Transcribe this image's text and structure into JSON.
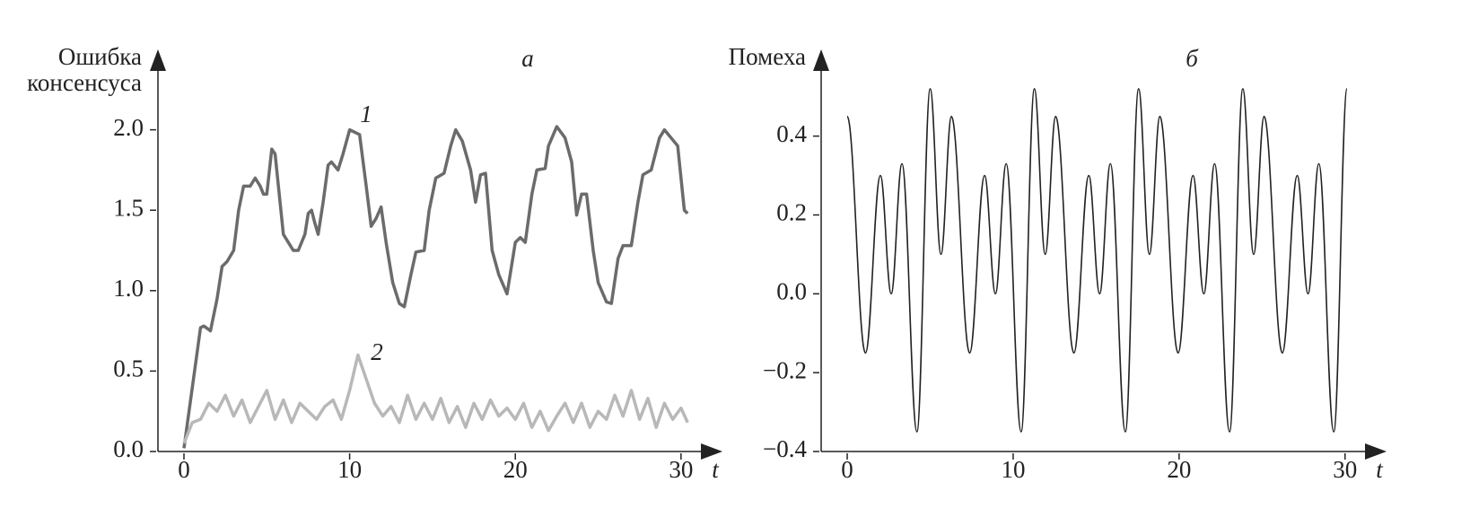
{
  "chart_data": [
    {
      "type": "line",
      "title": "а",
      "ylabel": [
        "Ошибка",
        "консенсуса"
      ],
      "xlabel": "t",
      "xlim": [
        -1.57,
        32.5
      ],
      "ylim": [
        0,
        2.5
      ],
      "xticks": [
        0,
        10,
        20,
        30
      ],
      "yticks": [
        {
          "value": 0,
          "label": "0.0"
        },
        0.5,
        {
          "value": 1,
          "label": "1.0"
        },
        1.5,
        {
          "value": 2,
          "label": "2.0"
        }
      ],
      "smooth": false,
      "series": [
        {
          "name": "1",
          "color": "#6b6b6b",
          "x": [
            0,
            1,
            1.2,
            1.6,
            2,
            2.3,
            2.6,
            3,
            3.3,
            3.6,
            4,
            4.3,
            4.6,
            4.8,
            5,
            5.3,
            5.5,
            5.8,
            6,
            6.3,
            6.6,
            6.9,
            7.3,
            7.5,
            7.7,
            7.9,
            8.1,
            8.4,
            8.7,
            8.9,
            9.3,
            9.6,
            10,
            10.6,
            11,
            11.3,
            11.6,
            11.9,
            12.2,
            12.6,
            13,
            13.3,
            13.7,
            14,
            14.5,
            14.8,
            15.2,
            15.7,
            16.1,
            16.4,
            16.8,
            17.3,
            17.6,
            17.9,
            18.2,
            18.6,
            19,
            19.5,
            20,
            20.3,
            20.6,
            21,
            21.3,
            21.8,
            22,
            22.5,
            23,
            23.4,
            23.7,
            24,
            24.3,
            24.7,
            25,
            25.5,
            25.8,
            26.2,
            26.5,
            27,
            27.4,
            27.7,
            28.2,
            28.7,
            29,
            29.4,
            29.8,
            30.2,
            30.4
          ],
          "values": [
            0.02,
            0.77,
            0.78,
            0.75,
            0.95,
            1.15,
            1.18,
            1.25,
            1.5,
            1.65,
            1.65,
            1.7,
            1.65,
            1.6,
            1.6,
            1.88,
            1.85,
            1.55,
            1.35,
            1.3,
            1.25,
            1.25,
            1.35,
            1.48,
            1.5,
            1.42,
            1.35,
            1.55,
            1.78,
            1.8,
            1.75,
            1.85,
            2.0,
            1.97,
            1.65,
            1.4,
            1.45,
            1.52,
            1.3,
            1.05,
            0.92,
            0.9,
            1.1,
            1.24,
            1.25,
            1.5,
            1.7,
            1.73,
            1.9,
            2.0,
            1.93,
            1.75,
            1.55,
            1.72,
            1.73,
            1.25,
            1.1,
            0.98,
            1.3,
            1.33,
            1.3,
            1.6,
            1.75,
            1.76,
            1.9,
            2.02,
            1.95,
            1.8,
            1.47,
            1.6,
            1.6,
            1.25,
            1.05,
            0.93,
            0.92,
            1.2,
            1.28,
            1.28,
            1.55,
            1.72,
            1.75,
            1.95,
            2.0,
            1.95,
            1.9,
            1.5,
            1.48
          ]
        },
        {
          "name": "2",
          "color": "#b8b8b8",
          "x": [
            0,
            0.5,
            1,
            1.5,
            2,
            2.5,
            3,
            3.5,
            4,
            4.5,
            5,
            5.5,
            6,
            6.5,
            7,
            7.5,
            8,
            8.5,
            9,
            9.5,
            10,
            10.5,
            11,
            11.5,
            12,
            12.5,
            13,
            13.5,
            14,
            14.5,
            15,
            15.5,
            16,
            16.5,
            17,
            17.5,
            18,
            18.5,
            19,
            19.5,
            20,
            20.5,
            21,
            21.5,
            22,
            22.5,
            23,
            23.5,
            24,
            24.5,
            25,
            25.5,
            26,
            26.5,
            27,
            27.5,
            28,
            28.5,
            29,
            29.5,
            30,
            30.4
          ],
          "values": [
            0.05,
            0.18,
            0.2,
            0.3,
            0.25,
            0.35,
            0.22,
            0.32,
            0.18,
            0.28,
            0.38,
            0.2,
            0.32,
            0.18,
            0.3,
            0.25,
            0.2,
            0.28,
            0.32,
            0.2,
            0.38,
            0.6,
            0.45,
            0.3,
            0.22,
            0.28,
            0.18,
            0.35,
            0.2,
            0.3,
            0.2,
            0.33,
            0.18,
            0.28,
            0.15,
            0.3,
            0.2,
            0.32,
            0.22,
            0.27,
            0.2,
            0.3,
            0.15,
            0.25,
            0.13,
            0.22,
            0.3,
            0.18,
            0.3,
            0.15,
            0.25,
            0.2,
            0.35,
            0.22,
            0.38,
            0.2,
            0.33,
            0.15,
            0.3,
            0.2,
            0.27,
            0.18
          ]
        }
      ]
    },
    {
      "type": "line",
      "title": "б",
      "ylabel": [
        "Помеха"
      ],
      "xlabel": "t",
      "xlim": [
        -1.57,
        32.5
      ],
      "ylim": [
        -0.4,
        0.62
      ],
      "xticks": [
        0,
        10,
        20,
        30
      ],
      "yticks": [
        {
          "value": -0.4,
          "label": "−0.4"
        },
        {
          "value": -0.2,
          "label": "−0.2"
        },
        {
          "value": 0,
          "label": "0.0"
        },
        0.2,
        0.4
      ],
      "smooth": true,
      "series": [
        {
          "name": null,
          "color": "#222222",
          "x": [
            0,
            1.1,
            2.0,
            2.65,
            3.3,
            4.2,
            5.0,
            5.65,
            6.28,
            7.38,
            8.28,
            8.93,
            9.58,
            10.48,
            11.28,
            11.93,
            12.56,
            13.66,
            14.56,
            15.21,
            15.86,
            16.76,
            17.56,
            18.21,
            18.84,
            19.94,
            20.84,
            21.49,
            22.14,
            23.04,
            23.84,
            24.49,
            25.12,
            26.22,
            27.12,
            27.77,
            28.42,
            29.32,
            30.12
          ],
          "values": [
            0.45,
            -0.15,
            0.3,
            0.0,
            0.33,
            -0.35,
            0.52,
            0.1,
            0.45,
            -0.15,
            0.3,
            0.0,
            0.33,
            -0.35,
            0.52,
            0.1,
            0.45,
            -0.15,
            0.3,
            0.0,
            0.33,
            -0.35,
            0.52,
            0.1,
            0.45,
            -0.15,
            0.3,
            0.0,
            0.33,
            -0.35,
            0.52,
            0.1,
            0.45,
            -0.15,
            0.3,
            0.0,
            0.33,
            -0.35,
            0.52
          ]
        }
      ]
    }
  ]
}
